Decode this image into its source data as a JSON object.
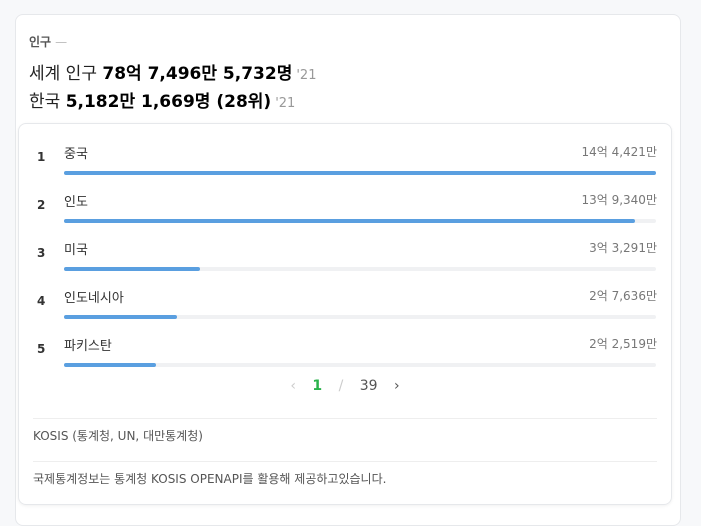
{
  "header": {
    "label": "인구",
    "world_prefix": "세계 인구",
    "world_value": "78억 7,496만 5,732명",
    "world_year": "'21",
    "korea_prefix": "한국",
    "korea_value": "5,182만 1,669명 (28위)",
    "korea_year": "'21"
  },
  "ranking": [
    {
      "rank": "1",
      "name": "중국",
      "value": "14억 4,421만",
      "percent": 100
    },
    {
      "rank": "2",
      "name": "인도",
      "value": "13억 9,340만",
      "percent": 96.5
    },
    {
      "rank": "3",
      "name": "미국",
      "value": "3억 3,291만",
      "percent": 23
    },
    {
      "rank": "4",
      "name": "인도네시아",
      "value": "2억 7,636만",
      "percent": 19.1
    },
    {
      "rank": "5",
      "name": "파키스탄",
      "value": "2억 2,519만",
      "percent": 15.6
    }
  ],
  "pager": {
    "current": "1",
    "separator": "/",
    "total": "39",
    "prev_icon": "chevron-left",
    "next_icon": "chevron-right"
  },
  "source": "KOSIS (통계청, UN, 대만통계청)",
  "note": "국제통계정보는 통계청 KOSIS OPENAPI를 활용해 제공하고있습니다.",
  "colors": {
    "bar": "#5a9fe0",
    "current_page": "#2ab24b"
  }
}
